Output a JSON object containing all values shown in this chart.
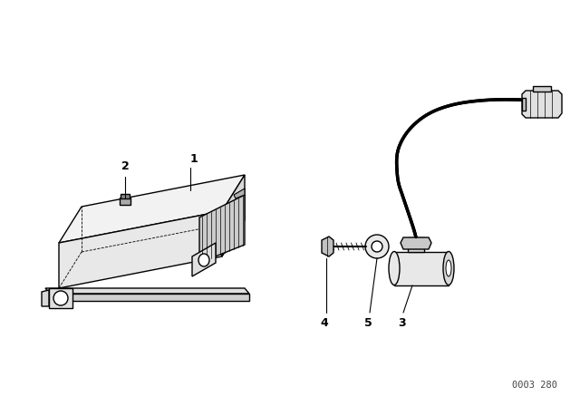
{
  "background_color": "#ffffff",
  "line_color": "#000000",
  "part_number_text": "0003 280",
  "figsize": [
    6.4,
    4.48
  ],
  "dpi": 100
}
